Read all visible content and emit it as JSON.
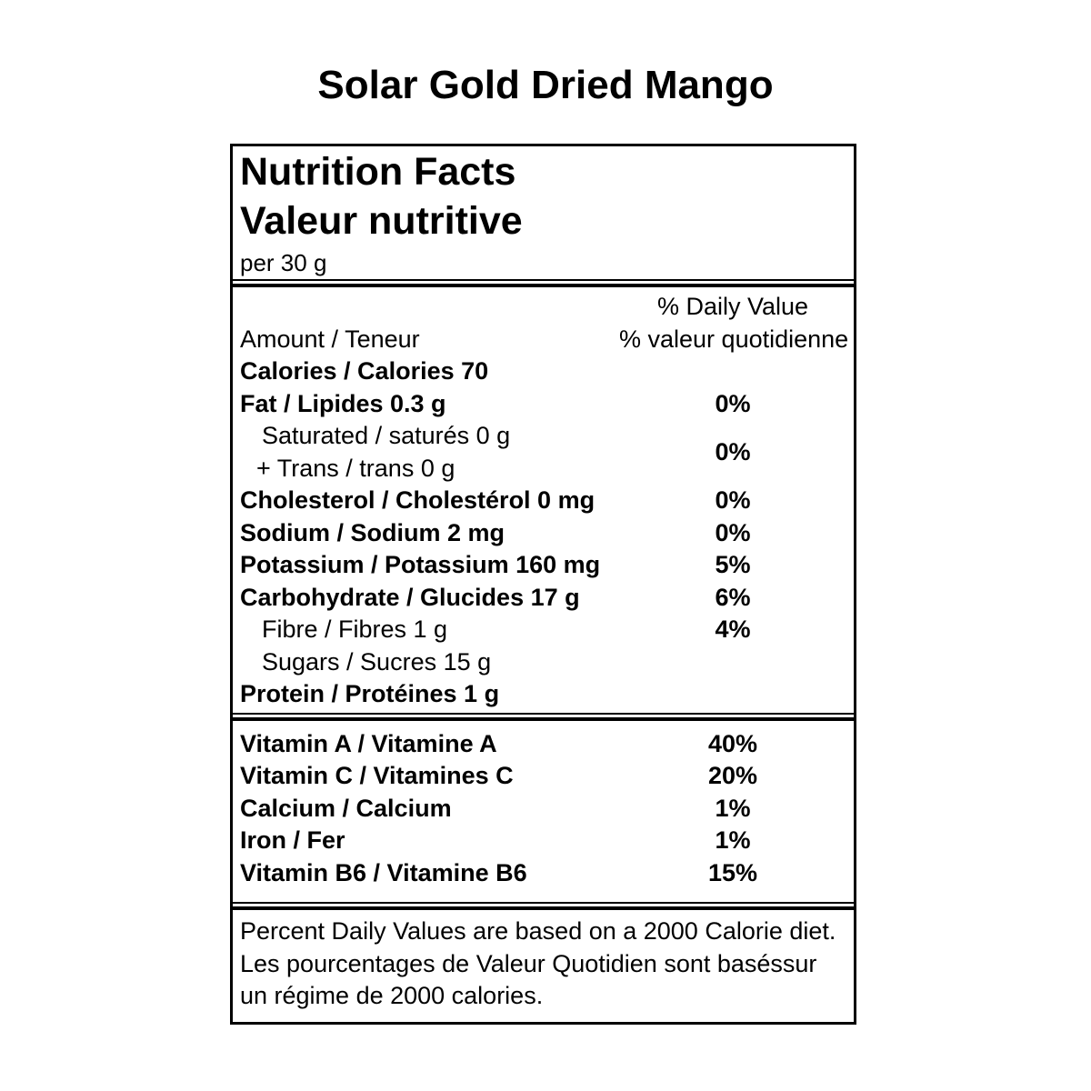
{
  "title": "Solar Gold Dried Mango",
  "nutrition_label": {
    "heading_en": "Nutrition Facts",
    "heading_fr": "Valeur nutritive",
    "serving_size": "per 30 g",
    "column_header": {
      "amount": "Amount / Teneur",
      "daily_value_en": "% Daily Value",
      "daily_value_fr": "% valeur quotidienne"
    },
    "nutrients": [
      {
        "label": "Calories / Calories 70",
        "daily_value": ""
      },
      {
        "label": "Fat / Lipides 0.3 g",
        "daily_value": "0%"
      },
      {
        "label_line1": "Saturated / saturés 0 g",
        "label_line2": "+ Trans / trans 0 g",
        "daily_value": "0%"
      },
      {
        "label": "Cholesterol / Cholestérol 0 mg",
        "daily_value": "0%"
      },
      {
        "label": "Sodium / Sodium 2 mg",
        "daily_value": "0%"
      },
      {
        "label": "Potassium / Potassium 160 mg",
        "daily_value": "5%"
      },
      {
        "label": "Carbohydrate / Glucides 17 g",
        "daily_value": "6%"
      },
      {
        "label": "Fibre / Fibres 1 g",
        "daily_value": "4%"
      },
      {
        "label": "Sugars / Sucres 15 g",
        "daily_value": ""
      },
      {
        "label": "Protein / Protéines 1 g",
        "daily_value": ""
      }
    ],
    "micronutrients": [
      {
        "label": "Vitamin A / Vitamine A",
        "daily_value": "40%"
      },
      {
        "label": "Vitamin C / Vitamines C",
        "daily_value": "20%"
      },
      {
        "label": "Calcium / Calcium",
        "daily_value": "1%"
      },
      {
        "label": "Iron / Fer",
        "daily_value": "1%"
      },
      {
        "label": "Vitamin B6 / Vitamine B6",
        "daily_value": "15%"
      }
    ],
    "footnote_lines": [
      "Percent Daily Values are based on a 2000 Calorie diet.",
      "Les pourcentages de Valeur Quotidien sont baséssur",
      "un régime de 2000 calories."
    ]
  },
  "colors": {
    "text": "#000000",
    "background": "#ffffff",
    "border": "#000000"
  }
}
